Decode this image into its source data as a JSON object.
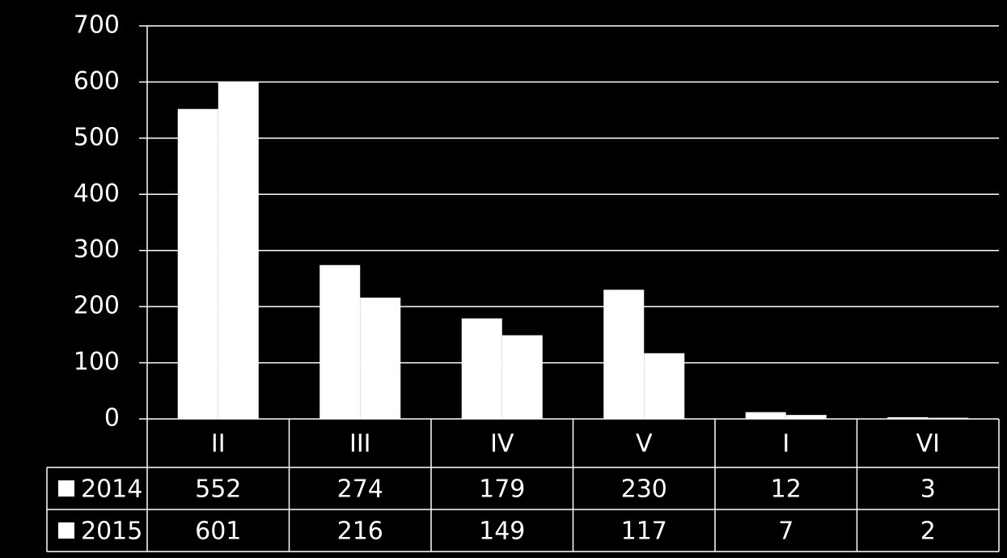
{
  "chart_data": {
    "type": "bar",
    "categories": [
      "II",
      "III",
      "IV",
      "V",
      "I",
      "VI"
    ],
    "series": [
      {
        "name": "2014",
        "color": "#ffffff",
        "values": [
          552,
          274,
          179,
          230,
          12,
          3
        ]
      },
      {
        "name": "2015",
        "color": "#ffffff",
        "values": [
          601,
          216,
          149,
          117,
          7,
          2
        ]
      }
    ],
    "ylim": [
      0,
      700
    ],
    "yticks": [
      0,
      100,
      200,
      300,
      400,
      500,
      600,
      700
    ],
    "grid": true,
    "data_table": true
  }
}
